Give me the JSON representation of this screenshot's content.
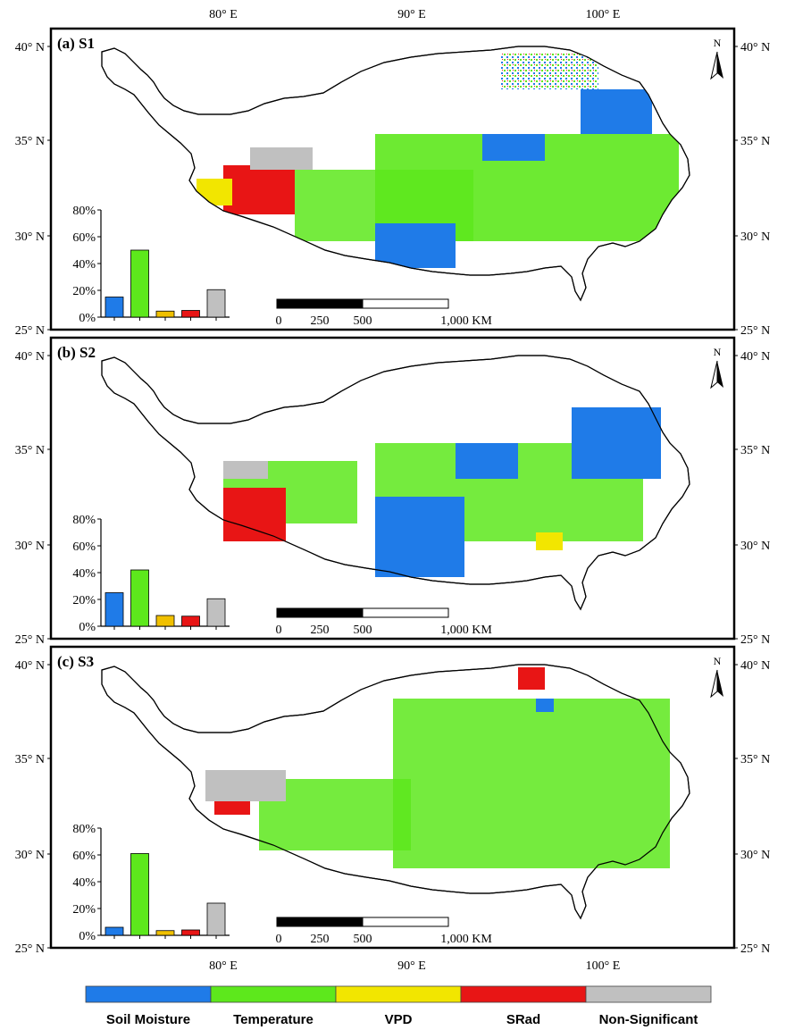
{
  "figure": {
    "top_lon_labels": [
      "80° E",
      "90° E",
      "100° E"
    ],
    "bottom_lon_labels": [
      "80° E",
      "90° E",
      "100° E"
    ],
    "lat_labels": [
      "40° N",
      "35° N",
      "30° N",
      "25° N"
    ],
    "north_label": "N",
    "scale_labels": [
      "0",
      "250",
      "500",
      "1,000 KM"
    ]
  },
  "colors": {
    "soil_moisture": "#1f7be8",
    "temperature": "#5de81c",
    "vpd": "#f2e600",
    "srad": "#e81515",
    "non_significant": "#c0c0c0",
    "bar_vpd": "#f0c000"
  },
  "legend": {
    "items": [
      {
        "label": "Soil Moisture",
        "color": "#1f7be8"
      },
      {
        "label": "Temperature",
        "color": "#5de81c"
      },
      {
        "label": "VPD",
        "color": "#f2e600"
      },
      {
        "label": "SRad",
        "color": "#e81515"
      },
      {
        "label": "Non-Significant",
        "color": "#c0c0c0"
      }
    ]
  },
  "panels": [
    {
      "id": "a",
      "title": "(a) S1",
      "inset_ticks": [
        "80%",
        "60%",
        "40%",
        "20%",
        "0%"
      ]
    },
    {
      "id": "b",
      "title": "(b) S2",
      "inset_ticks": [
        "80%",
        "60%",
        "40%",
        "20%",
        "0%"
      ]
    },
    {
      "id": "c",
      "title": "(c) S3",
      "inset_ticks": [
        "80%",
        "60%",
        "40%",
        "20%",
        "0%"
      ]
    }
  ],
  "chart_data": [
    {
      "type": "bar",
      "categories": [
        "Soil Moisture",
        "Temperature",
        "VPD",
        "SRad",
        "Non-Significant"
      ],
      "values": [
        15,
        50,
        4.5,
        5,
        20.5
      ],
      "ylim": [
        0,
        80
      ]
    },
    {
      "type": "bar",
      "categories": [
        "Soil Moisture",
        "Temperature",
        "VPD",
        "SRad",
        "Non-Significant"
      ],
      "values": [
        25,
        42,
        8,
        7.5,
        20.5
      ],
      "ylim": [
        0,
        80
      ]
    },
    {
      "type": "bar",
      "categories": [
        "Soil Moisture",
        "Temperature",
        "VPD",
        "SRad",
        "Non-Significant"
      ],
      "values": [
        6,
        61,
        3.5,
        4,
        24
      ],
      "ylim": [
        0,
        80
      ]
    }
  ]
}
